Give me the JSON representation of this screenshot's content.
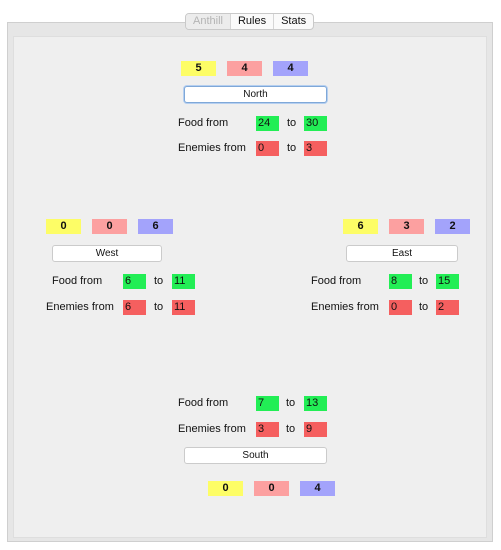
{
  "tabs": [
    {
      "label": "Anthill",
      "selected": true
    },
    {
      "label": "Rules",
      "selected": false
    },
    {
      "label": "Stats",
      "selected": false
    }
  ],
  "labels": {
    "food_from": "Food from",
    "enemies_from": "Enemies from",
    "to": "to"
  },
  "north": {
    "counts": [
      "5",
      "4",
      "4"
    ],
    "button": "North",
    "food": {
      "from": "24",
      "to": "30"
    },
    "enemies": {
      "from": "0",
      "to": "3"
    }
  },
  "west": {
    "counts": [
      "0",
      "0",
      "6"
    ],
    "button": "West",
    "food": {
      "from": "6",
      "to": "11"
    },
    "enemies": {
      "from": "6",
      "to": "11"
    }
  },
  "east": {
    "counts": [
      "6",
      "3",
      "2"
    ],
    "button": "East",
    "food": {
      "from": "8",
      "to": "15"
    },
    "enemies": {
      "from": "0",
      "to": "2"
    }
  },
  "south": {
    "counts": [
      "0",
      "0",
      "4"
    ],
    "button": "South",
    "food": {
      "from": "7",
      "to": "13"
    },
    "enemies": {
      "from": "3",
      "to": "9"
    }
  },
  "colors": {
    "yellow": "#fdfd66",
    "red": "#fca0a0",
    "blue": "#a3a3fb",
    "green": "#22ee55",
    "dark_red": "#f55f5f"
  }
}
